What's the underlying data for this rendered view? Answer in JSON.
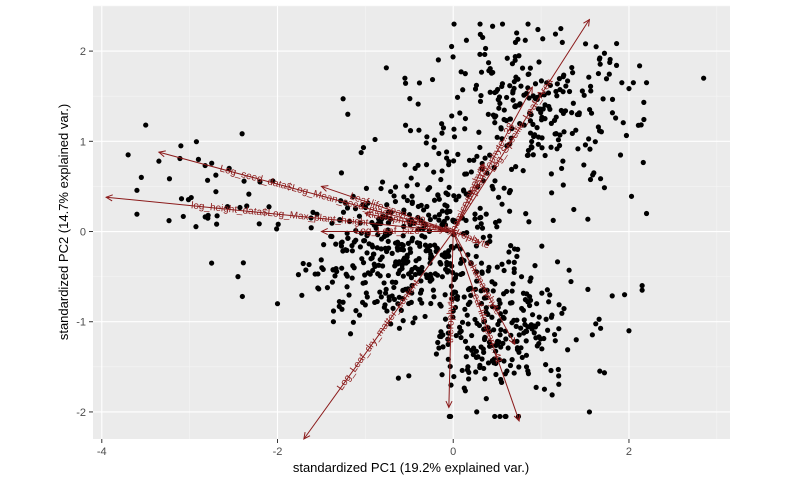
{
  "chart_data": {
    "type": "scatter",
    "xlabel": "standardized PC1 (19.2% explained var.)",
    "ylabel": "standardized PC2 (14.7% explained var.)",
    "xlim": [
      -4.1,
      3.15
    ],
    "ylim": [
      -2.3,
      2.5
    ],
    "x_ticks": [
      -4,
      -2,
      0,
      2
    ],
    "y_ticks": [
      -2,
      -1,
      0,
      1,
      2
    ],
    "x_tick_labels": [
      "-4",
      "-2",
      "0",
      "2"
    ],
    "y_tick_labels": [
      "-2",
      "-1",
      "0",
      "1",
      "2"
    ],
    "grid": true,
    "point_color": "#000000",
    "arrow_color": "#8b1a1a",
    "panel_color": "#ebebeb",
    "clusters": [
      {
        "cx": -0.6,
        "cy": -0.3,
        "sx": 0.55,
        "sy": 0.35,
        "n": 330
      },
      {
        "cx": 0.5,
        "cy": -1.1,
        "sx": 0.45,
        "sy": 0.4,
        "n": 250
      },
      {
        "cx": 0.9,
        "cy": 1.3,
        "sx": 0.6,
        "sy": 0.45,
        "n": 260
      },
      {
        "cx": -0.2,
        "cy": 0.4,
        "sx": 0.5,
        "sy": 0.5,
        "n": 120
      },
      {
        "cx": -2.6,
        "cy": 0.4,
        "sx": 0.6,
        "sy": 0.25,
        "n": 30
      }
    ],
    "points": [
      {
        "x": -3.5,
        "y": 1.18
      },
      {
        "x": -3.35,
        "y": 0.78
      },
      {
        "x": -3.7,
        "y": 0.85
      },
      {
        "x": -3.55,
        "y": 0.6
      },
      {
        "x": -3.1,
        "y": 0.95
      },
      {
        "x": -2.9,
        "y": 0.8
      },
      {
        "x": -2.75,
        "y": -0.35
      },
      {
        "x": -2.45,
        "y": -0.5
      },
      {
        "x": -2.4,
        "y": -0.72
      },
      {
        "x": -2.0,
        "y": -0.8
      },
      {
        "x": -2.55,
        "y": 0.7
      },
      {
        "x": -2.2,
        "y": 0.55
      },
      {
        "x": 2.85,
        "y": 1.7
      },
      {
        "x": 2.05,
        "y": 1.65
      },
      {
        "x": 2.2,
        "y": 1.65
      },
      {
        "x": 2.2,
        "y": 0.2
      },
      {
        "x": 2.15,
        "y": -0.6
      },
      {
        "x": 2.15,
        "y": -0.65
      },
      {
        "x": 1.95,
        "y": -0.7
      },
      {
        "x": 2.0,
        "y": -1.1
      },
      {
        "x": 1.55,
        "y": -2.0
      },
      {
        "x": 1.2,
        "y": -1.6
      },
      {
        "x": 1.4,
        "y": -1.2
      },
      {
        "x": 0.15,
        "y": 2.12
      },
      {
        "x": 0.82,
        "y": 2.12
      },
      {
        "x": -0.55,
        "y": 1.7
      },
      {
        "x": 1.6,
        "y": 0.65
      },
      {
        "x": -0.3,
        "y": 1.05
      },
      {
        "x": -1.2,
        "y": 1.3
      },
      {
        "x": 0.6,
        "y": -2.05
      }
    ],
    "arrows": [
      {
        "label": "Log_seed_data$Log_Mean_seed_mass",
        "x": -3.35,
        "y": 0.88
      },
      {
        "label": "Leaf life span...40",
        "x": -1.5,
        "y": 0.5
      },
      {
        "label": "log_height_data$Log_Max_plant_height",
        "x": -3.95,
        "y": 0.38
      },
      {
        "label": "macrophanerophyte",
        "x": -1.0,
        "y": 0.2
      },
      {
        "label": "Log_Leaf_size",
        "x": -1.5,
        "y": 0.0
      },
      {
        "label": "Log_Leaf_dry_matter_content",
        "x": -1.7,
        "y": -2.3
      },
      {
        "label": "hydrophyte",
        "x": 0.3,
        "y": -0.12
      },
      {
        "label": "chamaephyte",
        "x": 0.7,
        "y": -1.25
      },
      {
        "label": "therophyte",
        "x": -0.05,
        "y": -1.95
      },
      {
        "label": "Leaf life span...41",
        "x": 0.75,
        "y": -2.1
      },
      {
        "label": "Log_Specific_Leaf_Area",
        "x": 1.55,
        "y": 2.35
      },
      {
        "label": "phanerophyte...38",
        "x": 0.9,
        "y": 1.6
      },
      {
        "label": "hemicryptophyte",
        "x": 0.35,
        "y": 0.75
      }
    ]
  }
}
